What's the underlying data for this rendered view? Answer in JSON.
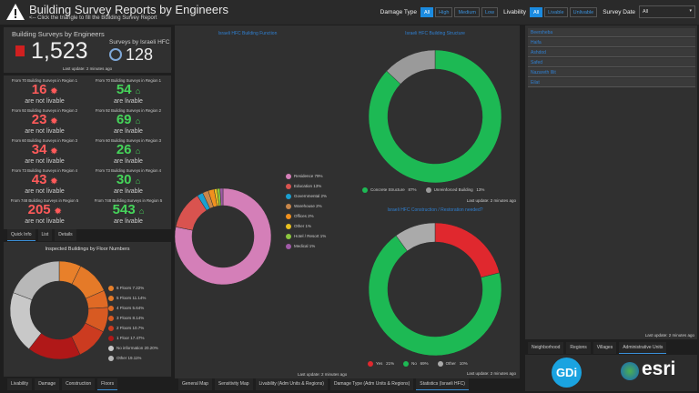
{
  "header": {
    "title": "Building Survey Reports by Engineers",
    "subtitle": "<-- Click the triangle to fill the Building Survey Report",
    "damage_label": "Damage Type",
    "damage_options": [
      "All",
      "High",
      "Medium",
      "Low"
    ],
    "livability_label": "Livability",
    "livability_options": [
      "All",
      "Livable",
      "Unlivable"
    ],
    "survey_date_label": "Survey Date",
    "survey_date_value": "All"
  },
  "kpi": {
    "engineers_label": "Building Surveys by Engineers",
    "engineers_value": "1,523",
    "hfc_label": "Surveys by Israeli HFC",
    "hfc_value": "128",
    "last_update": "Last update: 2 minutes ago"
  },
  "regions": [
    {
      "unlivable_caption": "From 70 Building Surveys in Region 1",
      "unlivable": "16",
      "livable_caption": "From 70 Building Surveys in Region 1",
      "livable": "54"
    },
    {
      "unlivable_caption": "From 92 Building Surveys in Region 2",
      "unlivable": "23",
      "livable_caption": "From 92 Building Surveys in Region 2",
      "livable": "69"
    },
    {
      "unlivable_caption": "From 60 Building Surveys in Region 3",
      "unlivable": "34",
      "livable_caption": "From 60 Building Surveys in Region 3",
      "livable": "26"
    },
    {
      "unlivable_caption": "From 73 Building Surveys in Region 4",
      "unlivable": "43",
      "livable_caption": "From 73 Building Surveys in Region 4",
      "livable": "30"
    },
    {
      "unlivable_caption": "From 748 Building Surveys in Region 5",
      "unlivable": "205",
      "livable_caption": "From 748 Building Surveys in Region 5",
      "livable": "543"
    }
  ],
  "region_labels": {
    "unlivable": "are not livable",
    "livable": "are livable"
  },
  "left_tabs": [
    "Quick Info",
    "List",
    "Details"
  ],
  "floor_tabs": [
    "Livability",
    "Damage",
    "Construction",
    "Floors"
  ],
  "main_tabs": [
    "General Map",
    "Sensitivity Map",
    "Livability (Adm Units & Regions)",
    "Damage Type (Adm Units & Regions)",
    "Statistics (Israeli HFC)"
  ],
  "right_tabs": [
    "Neighborhood",
    "Regions",
    "Villages",
    "Administrative Units"
  ],
  "right_list": [
    "Beersheba",
    "Haifa",
    "Ashdod",
    "Safed",
    "Nazareth Illit",
    "Eilat"
  ],
  "last_update": "Last update: 2 minutes ago",
  "logos": {
    "gdi": "GDi",
    "esri": "esri"
  },
  "chart_data": [
    {
      "type": "pie",
      "title": "Inspected Buildings by Floor Numbers",
      "categories": [
        "6 Floors",
        "5 Floors",
        "4 Floors",
        "3 Floors",
        "2 Floors",
        "1 Floor",
        "No information",
        "Other"
      ],
      "values": [
        7.22,
        11.14,
        5.64,
        8.14,
        10.7,
        17.47,
        20.2,
        19.11
      ],
      "labels": [
        "6 Floors 7.22%",
        "5 Floors 11.14%",
        "4 Floors 5.64%",
        "3 Floors 8.14%",
        "2 Floors 10.7%",
        "1 Floor 17.47%",
        "No information 20.20%",
        "Other 19.11%"
      ],
      "colors": [
        "#e8802a",
        "#e57a28",
        "#e06a25",
        "#d85a22",
        "#cc3b20",
        "#b01818",
        "#c8c8c8",
        "#b8b8b8"
      ]
    },
    {
      "type": "pie",
      "title": "Israeli HFC Building Function",
      "categories": [
        "Residence",
        "Education",
        "Governmental",
        "Warehouse",
        "Offices",
        "Other",
        "Hotel / Resort",
        "Medical"
      ],
      "values": [
        79,
        13,
        2,
        2,
        2,
        1,
        1,
        1
      ],
      "labels": [
        "Residence 79%",
        "Education 13%",
        "Governmental 2%",
        "Warehouse 2%",
        "Offices 2%",
        "Other 1%",
        "Hotel / Resort 1%",
        "Medical 1%"
      ],
      "colors": [
        "#d47fb8",
        "#d9534f",
        "#1a9fd0",
        "#c8864a",
        "#f0901e",
        "#e8c020",
        "#8cc63f",
        "#a05aa8"
      ]
    },
    {
      "type": "pie",
      "title": "Israeli HFC Building Structure",
      "categories": [
        "Concrete Structure",
        "Unreinforced Building"
      ],
      "values": [
        87,
        13
      ],
      "labels": [
        "87%",
        "13%"
      ],
      "colors": [
        "#1db954",
        "#9a9a9a"
      ]
    },
    {
      "type": "pie",
      "title": "Israeli HFC Construction / Restoration needed?",
      "categories": [
        "Yes",
        "No",
        "Other"
      ],
      "values": [
        21,
        69,
        10
      ],
      "labels": [
        "21%",
        "69%",
        "10%"
      ],
      "colors": [
        "#e0282e",
        "#1db954",
        "#aaaaaa"
      ]
    }
  ]
}
